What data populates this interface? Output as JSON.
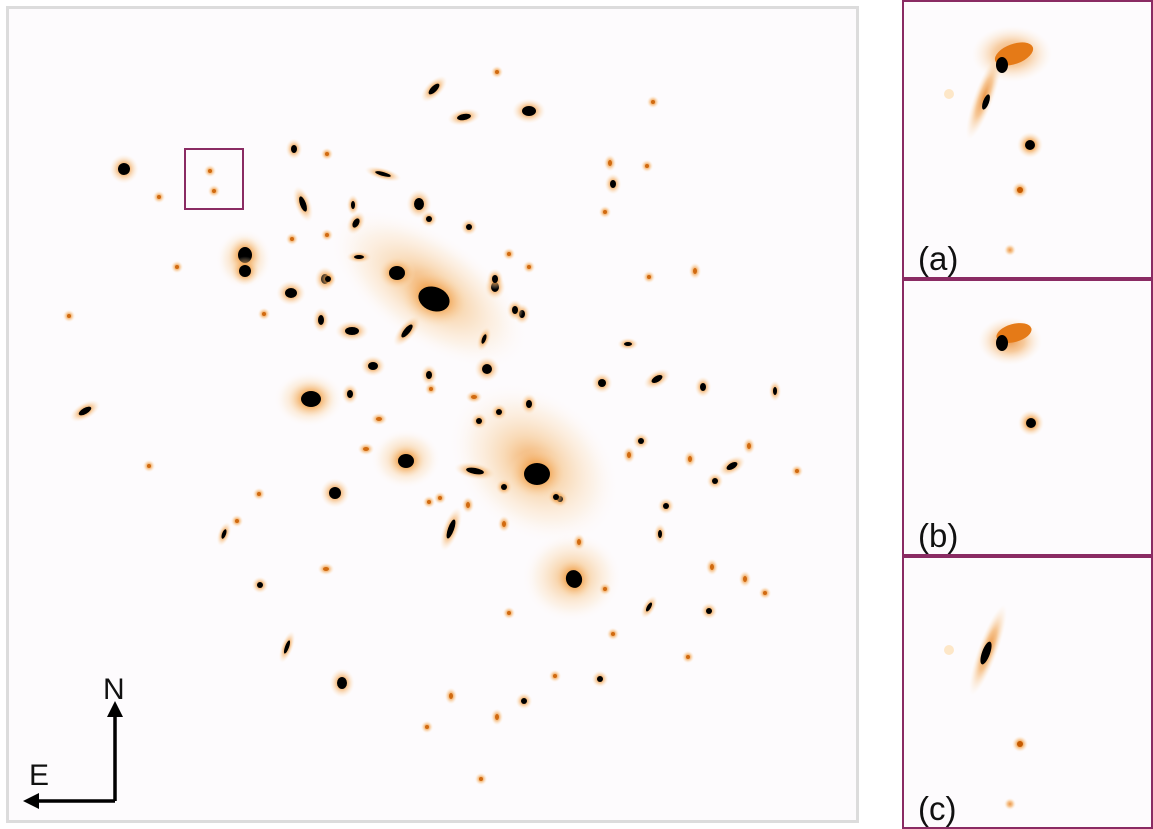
{
  "figure": {
    "compass": {
      "north": "N",
      "east": "E"
    },
    "zoom_box_color": "#8a2b63",
    "colormap": [
      "#fdfbfd",
      "#fde7c8",
      "#f7b469",
      "#e57a17",
      "#000000"
    ],
    "insets": [
      {
        "label": "(a)"
      },
      {
        "label": "(b)"
      },
      {
        "label": "(c)"
      }
    ]
  }
}
